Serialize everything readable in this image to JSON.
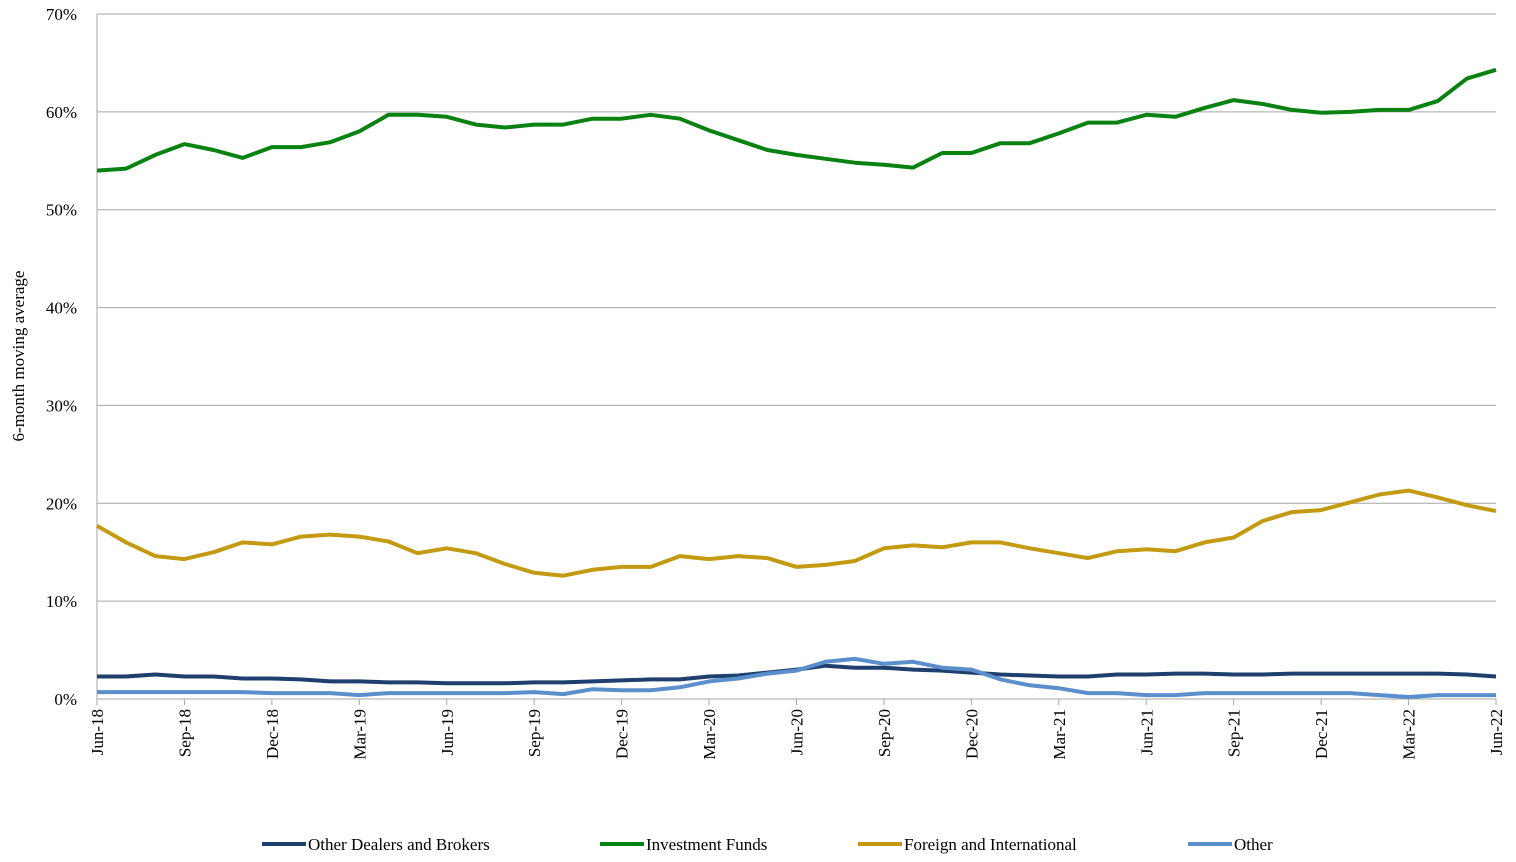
{
  "chart_data": {
    "type": "line",
    "y_label": "6-month moving average",
    "categories": [
      "Jun-18",
      null,
      null,
      "Sep-18",
      null,
      null,
      "Dec-18",
      null,
      null,
      "Mar-19",
      null,
      null,
      "Jun-19",
      null,
      null,
      "Sep-19",
      null,
      null,
      "Dec-19",
      null,
      null,
      "Mar-20",
      null,
      null,
      "Jun-20",
      null,
      null,
      "Sep-20",
      null,
      null,
      "Dec-20",
      null,
      null,
      "Mar-21",
      null,
      null,
      "Jun-21",
      null,
      null,
      "Sep-21",
      null,
      null,
      "Dec-21",
      null,
      null,
      "Mar-22",
      null,
      null,
      "Jun-22"
    ],
    "series": [
      {
        "name": "Other Dealers and Brokers",
        "color": "#1f3f6e",
        "values": [
          2.3,
          2.3,
          2.5,
          2.3,
          2.3,
          2.1,
          2.1,
          2.0,
          1.8,
          1.8,
          1.7,
          1.7,
          1.6,
          1.6,
          1.6,
          1.7,
          1.7,
          1.8,
          1.9,
          2.0,
          2.0,
          2.3,
          2.4,
          2.7,
          3.0,
          3.4,
          3.2,
          3.2,
          3.0,
          2.9,
          2.7,
          2.5,
          2.4,
          2.3,
          2.3,
          2.5,
          2.5,
          2.6,
          2.6,
          2.5,
          2.5,
          2.6,
          2.6,
          2.6,
          2.6,
          2.6,
          2.6,
          2.5,
          2.3
        ]
      },
      {
        "name": "Investment Funds",
        "color": "#0a8212",
        "values": [
          54.0,
          54.2,
          55.6,
          56.7,
          56.1,
          55.3,
          56.4,
          56.4,
          56.9,
          58.0,
          59.7,
          59.7,
          59.5,
          58.7,
          58.4,
          58.7,
          58.7,
          59.3,
          59.3,
          59.7,
          59.3,
          58.1,
          57.1,
          56.1,
          55.6,
          55.2,
          54.8,
          54.6,
          54.3,
          55.8,
          55.8,
          56.8,
          56.8,
          57.8,
          58.9,
          58.9,
          59.7,
          59.5,
          60.4,
          61.2,
          60.8,
          60.2,
          59.9,
          60.0,
          60.2,
          60.2,
          61.1,
          63.4,
          64.3
        ]
      },
      {
        "name": "Foreign and International",
        "color": "#c49a12",
        "values": [
          17.7,
          16.0,
          14.6,
          14.3,
          15.0,
          16.0,
          15.8,
          16.6,
          16.8,
          16.6,
          16.1,
          14.9,
          15.4,
          14.9,
          13.8,
          12.9,
          12.6,
          13.2,
          13.5,
          13.5,
          14.6,
          14.3,
          14.6,
          14.4,
          13.5,
          13.7,
          14.1,
          15.4,
          15.7,
          15.5,
          16.0,
          16.0,
          15.4,
          14.9,
          14.4,
          15.1,
          15.3,
          15.1,
          16.0,
          16.5,
          18.2,
          19.1,
          19.3,
          20.1,
          20.9,
          21.3,
          20.6,
          19.8,
          19.2
        ]
      },
      {
        "name": "Other",
        "color": "#5b8fcc",
        "values": [
          0.7,
          0.7,
          0.7,
          0.7,
          0.7,
          0.7,
          0.6,
          0.6,
          0.6,
          0.4,
          0.6,
          0.6,
          0.6,
          0.6,
          0.6,
          0.7,
          0.5,
          1.0,
          0.9,
          0.9,
          1.2,
          1.8,
          2.1,
          2.6,
          2.9,
          3.8,
          4.1,
          3.6,
          3.8,
          3.2,
          3.0,
          2.0,
          1.4,
          1.1,
          0.6,
          0.6,
          0.4,
          0.4,
          0.6,
          0.6,
          0.6,
          0.6,
          0.6,
          0.6,
          0.4,
          0.2,
          0.4,
          0.4,
          0.4
        ]
      }
    ],
    "ylim": [
      0,
      70
    ],
    "yticks": [
      {
        "value": 0,
        "label": "0%"
      },
      {
        "value": 10,
        "label": "10%"
      },
      {
        "value": 20,
        "label": "20%"
      },
      {
        "value": 30,
        "label": "30%"
      },
      {
        "value": 40,
        "label": "40%"
      },
      {
        "value": 50,
        "label": "50%"
      },
      {
        "value": 60,
        "label": "60%"
      },
      {
        "value": 70,
        "label": "70%"
      }
    ],
    "grid": true,
    "legend": "bottom"
  }
}
